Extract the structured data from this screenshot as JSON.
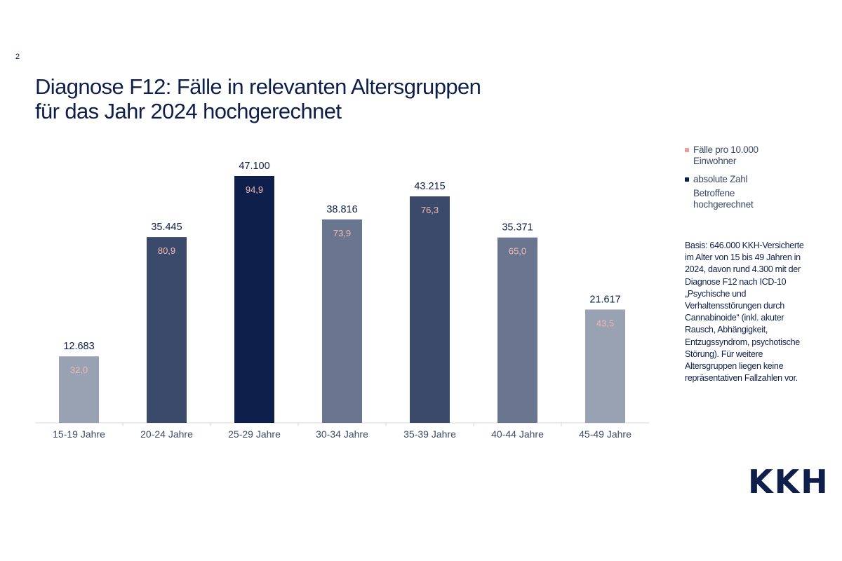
{
  "page_number": "2",
  "title_line1": "Diagnose F12: Fälle in relevanten Altersgruppen",
  "title_line2": "für das Jahr 2024 hochgerechnet",
  "legend": {
    "rate_label": "Fälle pro 10.000 Einwohner",
    "absolute_label_1": "absolute Zahl",
    "absolute_label_2": "Betroffene hochgerechnet",
    "rate_color": "#e8a09a",
    "absolute_color": "#0d1f4a"
  },
  "note": "Basis: 646.000 KKH-Versicherte im Alter von 15 bis 49 Jahren in 2024, davon rund 4.300 mit der Diagnose F12 nach ICD-10 „Psychische und Verhaltensstörungen durch Cannabinoide“ (inkl. akuter Rausch, Abhängigkeit, Entzugssyndrom, psychotische Störung). Für weitere Altersgruppen liegen keine repräsentativen Fallzahlen vor.",
  "logo_text": "KKH",
  "chart_data": {
    "type": "bar",
    "categories": [
      "15-19 Jahre",
      "20-24 Jahre",
      "25-29 Jahre",
      "30-34 Jahre",
      "35-39 Jahre",
      "40-44 Jahre",
      "45-49 Jahre"
    ],
    "series": [
      {
        "name": "absolute Zahl Betroffene hochgerechnet",
        "values": [
          12683,
          35445,
          47100,
          38816,
          43215,
          35371,
          21617
        ],
        "labels": [
          "12.683",
          "35.445",
          "47.100",
          "38.816",
          "43.215",
          "35.371",
          "21.617"
        ]
      },
      {
        "name": "Fälle pro 10.000 Einwohner",
        "values": [
          32.0,
          80.9,
          94.9,
          73.9,
          76.3,
          65.0,
          43.5
        ],
        "labels": [
          "32,0",
          "80,9",
          "94,9",
          "73,9",
          "76,3",
          "65,0",
          "43,5"
        ]
      }
    ],
    "bar_colors": [
      "#99a2b3",
      "#3b4a6b",
      "#0d1f4a",
      "#6a7690",
      "#3b4a6b",
      "#6a7690",
      "#99a2b3"
    ],
    "value_label_color": "#0d1f4a",
    "rate_label_color": "#f3b8b0",
    "ylim": [
      0,
      47100
    ],
    "grid": false,
    "legend_position": "right"
  }
}
